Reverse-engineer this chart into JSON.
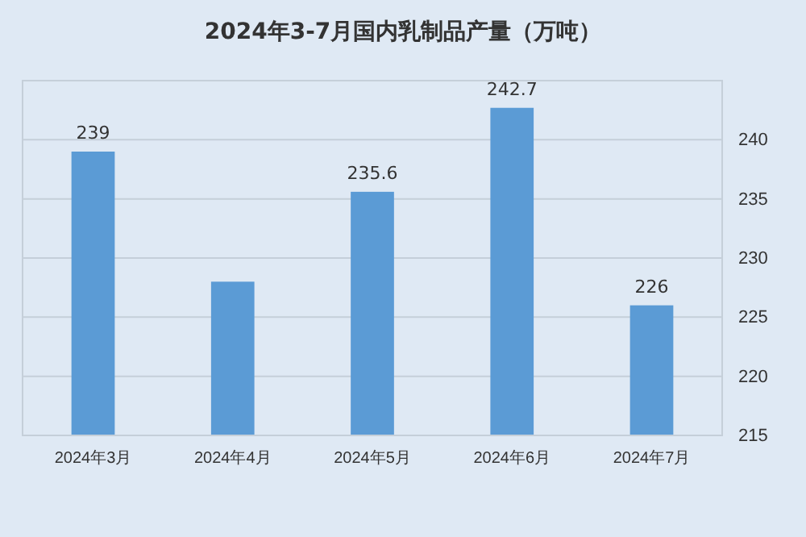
{
  "chart_data": {
    "type": "bar",
    "title": "2024年3-7月国内乳制品产量（万吨）",
    "categories": [
      "2024年3月",
      "2024年4月",
      "2024年5月",
      "2024年6月",
      "2024年7月"
    ],
    "values": [
      239,
      228,
      235.6,
      242.7,
      226
    ],
    "value_labels": [
      "239",
      null,
      "235.6",
      "242.7",
      "226"
    ],
    "color": "#5b9bd5",
    "ylim": [
      215,
      245
    ],
    "yticks": [
      215,
      220,
      225,
      230,
      235,
      240
    ],
    "grid": "y"
  }
}
